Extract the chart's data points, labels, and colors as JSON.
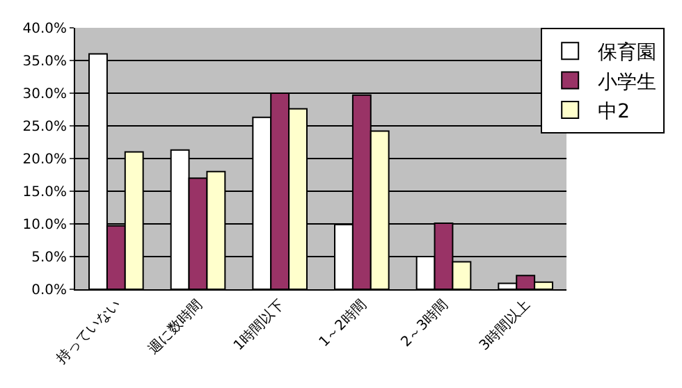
{
  "chart_data": {
    "type": "bar",
    "categories": [
      "持っていない",
      "週に数時間",
      "1時間以下",
      "1～2時間",
      "2～3時間",
      "3時間以上"
    ],
    "series": [
      {
        "name": "保育園",
        "color": "#ffffff",
        "values": [
          36.0,
          21.3,
          26.3,
          9.9,
          5.0,
          0.9
        ]
      },
      {
        "name": "小学生",
        "color": "#993366",
        "values": [
          9.7,
          17.0,
          30.0,
          29.7,
          10.1,
          2.1
        ]
      },
      {
        "name": "中2",
        "color": "#ffffcc",
        "values": [
          21.0,
          18.0,
          27.6,
          24.2,
          4.2,
          1.1
        ]
      }
    ],
    "ylim": [
      0,
      40
    ],
    "yticks": [
      {
        "value": 0,
        "label": "0.0%"
      },
      {
        "value": 5,
        "label": "5.0%"
      },
      {
        "value": 10,
        "label": "10.0%"
      },
      {
        "value": 15,
        "label": "15.0%"
      },
      {
        "value": 20,
        "label": "20.0%"
      },
      {
        "value": 25,
        "label": "25.0%"
      },
      {
        "value": 30,
        "label": "30.0%"
      },
      {
        "value": 35,
        "label": "35.0%"
      },
      {
        "value": 40,
        "label": "40.0%"
      }
    ],
    "grid": "y",
    "legend": "top right"
  }
}
